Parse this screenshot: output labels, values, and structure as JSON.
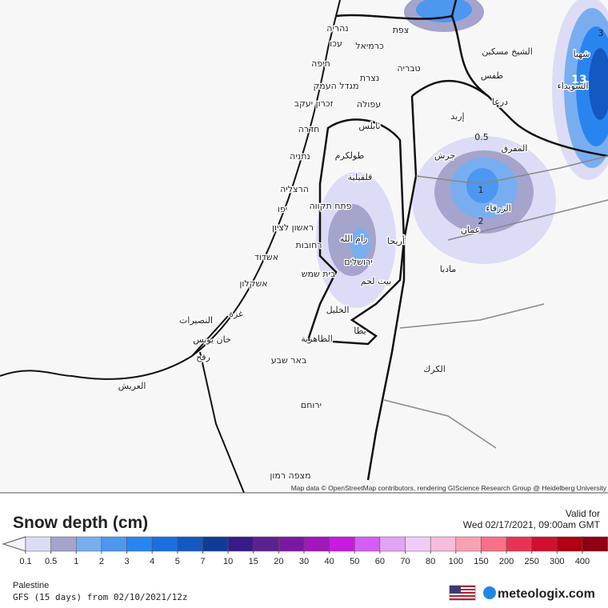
{
  "map": {
    "places": [
      "נהריה",
      "צפת",
      "עכו",
      "כרמיאל",
      "חיפה",
      "טבריה",
      "נצרת",
      "מגדל העמק",
      "זכרון יעקב",
      "עפולה",
      "חדרה",
      "נתניה",
      "הרצליה",
      "יפו",
      "פתח תקווה",
      "ראשון לציון",
      "רחובות",
      "אשדוד",
      "אשקלון",
      "בית שמש",
      "ירושלים",
      "رام الله",
      "أريحا",
      "بيت لحم",
      "الخليل",
      "يطا",
      "الظاهرية",
      "באר שבע",
      "ירוחם",
      "מצפה רמון",
      "غزة",
      "النصيرات",
      "خان يونس",
      "رفح",
      "العريش",
      "نابلس",
      "طولكرم",
      "قلقيلية",
      "إربد",
      "درعا",
      "الشيخ مسكين",
      "طفس",
      "السويداء",
      "شهبا",
      "المفرق",
      "جرش",
      "الزرقاء",
      "عمان",
      "مادبا",
      "الكرك"
    ],
    "contour_labels": [
      "0.5",
      "1",
      "2",
      "3",
      "13"
    ],
    "attribution": "Map data © OpenStreetMap contributors, rendering GIScience Research Group @ Heidelberg University"
  },
  "legend": {
    "title": "Snow depth (cm)",
    "ticks": [
      0.1,
      0.5,
      1,
      2,
      3,
      4,
      5,
      7,
      10,
      15,
      20,
      30,
      40,
      50,
      60,
      70,
      80,
      100,
      150,
      200,
      250,
      300,
      400
    ],
    "colors": [
      "#dcdcf6",
      "#a4a4cc",
      "#78aef0",
      "#4c98f0",
      "#2a84f0",
      "#1a6ee0",
      "#1458c2",
      "#0f3c96",
      "#3a1a88",
      "#5a228e",
      "#7a18a2",
      "#a018bc",
      "#c81ae0",
      "#d45ef2",
      "#e4a4f6",
      "#f2ccf8",
      "#f8bcdc",
      "#f8a0b4",
      "#f87088",
      "#e83454",
      "#d01030",
      "#b00012",
      "#900012"
    ],
    "under_color": "#f4f4fa",
    "over_color": "#600010"
  },
  "footer": {
    "valid_for": "Valid for",
    "valid_time": "Wed 02/17/2021, 09:00am GMT",
    "region": "Palestine",
    "model": "GFS (15 days) from 02/10/2021/12z",
    "brand": "meteologix.com"
  }
}
